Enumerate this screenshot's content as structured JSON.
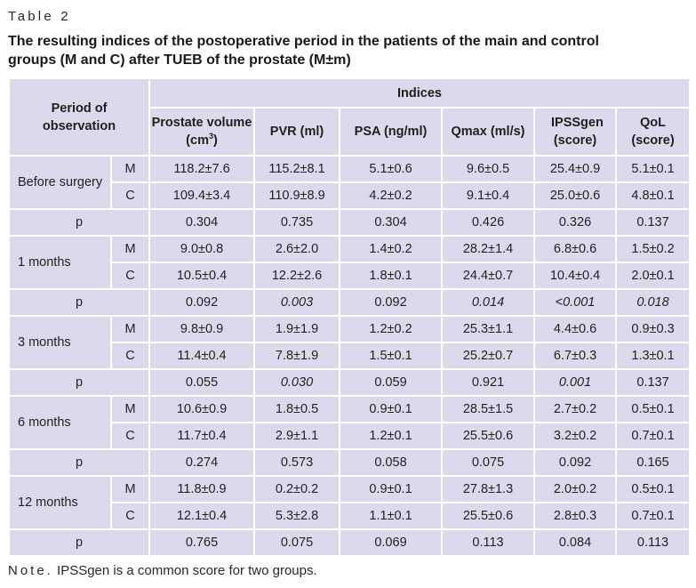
{
  "table_label": "Table 2",
  "caption": "The resulting indices of the postoperative period in the patients of the main and control groups (M and C) after TUEB of the prostate (M±m)",
  "header": {
    "period": "Period of observation",
    "indices": "Indices",
    "prostate_volume": "Prostate volume (cm",
    "prostate_volume_sup": "3",
    "prostate_volume_close": ")",
    "pvr": "PVR (ml)",
    "psa": "PSA (ng/ml)",
    "qmax": "Qmax (ml/s)",
    "ipss": "IPSSgen (score)",
    "qol": "QoL (score)"
  },
  "groups": [
    {
      "period": "Before surgery",
      "M": {
        "label": "M",
        "values": [
          "118.2±7.6",
          "115.2±8.1",
          "5.1±0.6",
          "9.6±0.5",
          "25.4±0.9",
          "5.1±0.1"
        ]
      },
      "C": {
        "label": "C",
        "values": [
          "109.4±3.4",
          "110.9±8.9",
          "4.2±0.2",
          "9.1±0.4",
          "25.0±0.6",
          "4.8±0.1"
        ]
      },
      "p": {
        "label": "p",
        "values": [
          "0.304",
          "0.735",
          "0.304",
          "0.426",
          "0.326",
          "0.137"
        ]
      }
    },
    {
      "period": "1 months",
      "M": {
        "label": "M",
        "values": [
          "9.0±0.8",
          "2.6±2.0",
          "1.4±0.2",
          "28.2±1.4",
          "6.8±0.6",
          "1.5±0.2"
        ]
      },
      "C": {
        "label": "C",
        "values": [
          "10.5±0.4",
          "12.2±2.6",
          "1.8±0.1",
          "24.4±0.7",
          "10.4±0.4",
          "2.0±0.1"
        ]
      },
      "p": {
        "label": "p",
        "values": [
          "0.092",
          "0.003",
          "0.092",
          "0.014",
          "<0.001",
          "0.018"
        ]
      }
    },
    {
      "period": "3 months",
      "M": {
        "label": "M",
        "values": [
          "9.8±0.9",
          "1.9±1.9",
          "1.2±0.2",
          "25.3±1.1",
          "4.4±0.6",
          "0.9±0.3"
        ]
      },
      "C": {
        "label": "C",
        "values": [
          "11.4±0.4",
          "7.8±1.9",
          "1.5±0.1",
          "25.2±0.7",
          "6.7±0.3",
          "1.3±0.1"
        ]
      },
      "p": {
        "label": "p",
        "values": [
          "0.055",
          "0.030",
          "0.059",
          "0.921",
          "0.001",
          "0.137"
        ]
      }
    },
    {
      "period": "6 months",
      "M": {
        "label": "M",
        "values": [
          "10.6±0.9",
          "1.8±0.5",
          "0.9±0.1",
          "28.5±1.5",
          "2.7±0.2",
          "0.5±0.1"
        ]
      },
      "C": {
        "label": "C",
        "values": [
          "11.7±0.4",
          "2.9±1.1",
          "1.2±0.1",
          "25.5±0.6",
          "3.2±0.2",
          "0.7±0.1"
        ]
      },
      "p": {
        "label": "p",
        "values": [
          "0.274",
          "0.573",
          "0.058",
          "0.075",
          "0.092",
          "0.165"
        ]
      }
    },
    {
      "period": "12 months",
      "M": {
        "label": "M",
        "values": [
          "11.8±0.9",
          "0.2±0.2",
          "0.9±0.1",
          "27.8±1.3",
          "2.0±0.2",
          "0.5±0.1"
        ]
      },
      "C": {
        "label": "C",
        "values": [
          "12.1±0.4",
          "5.3±2.8",
          "1.1±0.1",
          "25.5±0.6",
          "2.8±0.3",
          "0.7±0.1"
        ]
      },
      "p": {
        "label": "p",
        "values": [
          "0.765",
          "0.075",
          "0.069",
          "0.113",
          "0.084",
          "0.113"
        ]
      }
    }
  ],
  "note": {
    "prefix": "Note.",
    "text": " IPSSgen is a common score for two groups."
  }
}
